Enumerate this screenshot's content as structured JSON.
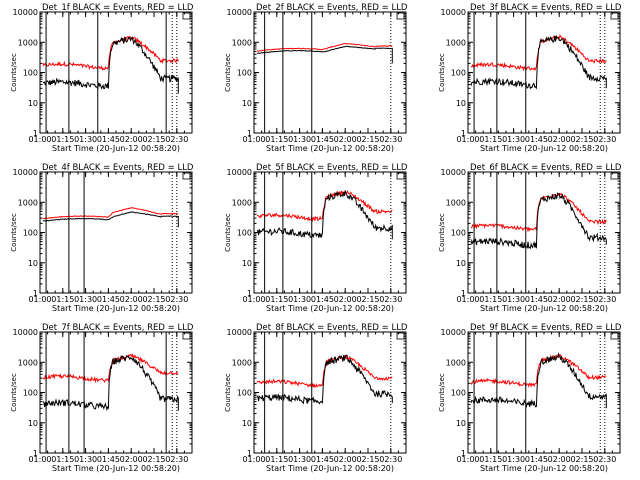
{
  "panels": [
    {
      "title": "Det_1f BLACK = Events, RED = LLD",
      "xlabel": "Start Time (20-Jun-12 00:58:20)",
      "ylabel": "Counts/sec",
      "events_base": 42,
      "events_peak": 1300,
      "lld_base": 165,
      "lld_peak": 1400,
      "solid_lines": [
        "01:04",
        "01:19",
        "01:38",
        "02:23"
      ],
      "dotted_lines": [
        "02:27",
        "02:30"
      ],
      "end_drop": 20
    },
    {
      "title": "Det_2f BLACK = Events, RED = LLD",
      "xlabel": "Start Time (20-Jun-12 00:58:20)",
      "ylabel": "Counts/sec",
      "events_base": 420,
      "events_peak": 720,
      "lld_base": 500,
      "lld_peak": 900,
      "solid_lines": [
        "01:07",
        "01:19",
        "01:38"
      ],
      "dotted_lines": [
        "02:30"
      ],
      "end_drop": 200
    },
    {
      "title": "Det_3f BLACK = Events, RED = LLD",
      "xlabel": "Start Time (20-Jun-12 00:58:20)",
      "ylabel": "Counts/sec",
      "events_base": 45,
      "events_peak": 1400,
      "lld_base": 160,
      "lld_peak": 1500,
      "solid_lines": [
        "01:04",
        "01:19",
        "01:38"
      ],
      "dotted_lines": [
        "02:27",
        "02:30"
      ],
      "end_drop": 30
    },
    {
      "title": "Det_4f BLACK = Events, RED = LLD",
      "xlabel": "Start Time (20-Jun-12 00:58:20)",
      "ylabel": "Counts/sec",
      "events_base": 230,
      "events_peak": 470,
      "lld_base": 280,
      "lld_peak": 650,
      "solid_lines": [
        "01:04",
        "01:19",
        "01:29"
      ],
      "dotted_lines": [
        "02:27",
        "02:30"
      ],
      "end_drop": 150
    },
    {
      "title": "Det_5f BLACK = Events, RED = LLD",
      "xlabel": "Start Time (20-Jun-12 00:58:20)",
      "ylabel": "Counts/sec",
      "events_base": 95,
      "events_peak": 2000,
      "lld_base": 330,
      "lld_peak": 2200,
      "solid_lines": [
        "01:07",
        "01:19",
        "01:38"
      ],
      "dotted_lines": [
        "02:30"
      ],
      "end_drop": 60
    },
    {
      "title": "Det_6f BLACK = Events, RED = LLD",
      "xlabel": "Start Time (20-Jun-12 00:58:20)",
      "ylabel": "Counts/sec",
      "events_base": 45,
      "events_peak": 1700,
      "lld_base": 150,
      "lld_peak": 1900,
      "solid_lines": [
        "01:04",
        "01:19",
        "01:38"
      ],
      "dotted_lines": [
        "02:27",
        "02:30"
      ],
      "end_drop": 40
    },
    {
      "title": "Det_7f BLACK = Events, RED = LLD",
      "xlabel": "Start Time (20-Jun-12 00:58:20)",
      "ylabel": "Counts/sec",
      "events_base": 40,
      "events_peak": 1500,
      "lld_base": 300,
      "lld_peak": 1600,
      "solid_lines": [
        "01:04",
        "01:19",
        "01:29",
        "02:23"
      ],
      "dotted_lines": [
        "02:27",
        "02:30"
      ],
      "end_drop": 25
    },
    {
      "title": "Det_8f BLACK = Events, RED = LLD",
      "xlabel": "Start Time (20-Jun-12 00:58:20)",
      "ylabel": "Counts/sec",
      "events_base": 60,
      "events_peak": 1400,
      "lld_base": 200,
      "lld_peak": 1500,
      "solid_lines": [
        "01:07",
        "01:19",
        "01:38"
      ],
      "dotted_lines": [
        "02:30"
      ],
      "end_drop": 45
    },
    {
      "title": "Det_9f BLACK = Events, RED = LLD",
      "xlabel": "Start Time (20-Jun-12 00:58:20)",
      "ylabel": "Counts/sec",
      "events_base": 50,
      "events_peak": 1500,
      "lld_base": 210,
      "lld_peak": 1600,
      "solid_lines": [
        "01:04",
        "01:19",
        "01:38"
      ],
      "dotted_lines": [
        "02:27",
        "02:30"
      ],
      "end_drop": 30
    }
  ],
  "chart_data": {
    "type": "line",
    "layout": "3x3 grid",
    "x_range": [
      "01:00",
      "02:40"
    ],
    "x_ticks": [
      "01:00",
      "01:15",
      "01:30",
      "01:45",
      "02:00",
      "02:15",
      "02:30"
    ],
    "y_scale": "log",
    "y_range": [
      1,
      10000
    ],
    "y_ticks": [
      "1",
      "10",
      "100",
      "1000",
      "10000"
    ],
    "event_times": {
      "rise_start": "01:45",
      "rise_end": "01:48",
      "peak": "02:00",
      "decay_end": "02:20"
    },
    "series": [
      {
        "name": "Events",
        "color": "#000000"
      },
      {
        "name": "LLD",
        "color": "#ff0000"
      }
    ],
    "marker_box": "top-right"
  },
  "colors": {
    "events": "#000000",
    "lld": "#ff0000",
    "background": "#ffffff",
    "axes": "#000000"
  }
}
